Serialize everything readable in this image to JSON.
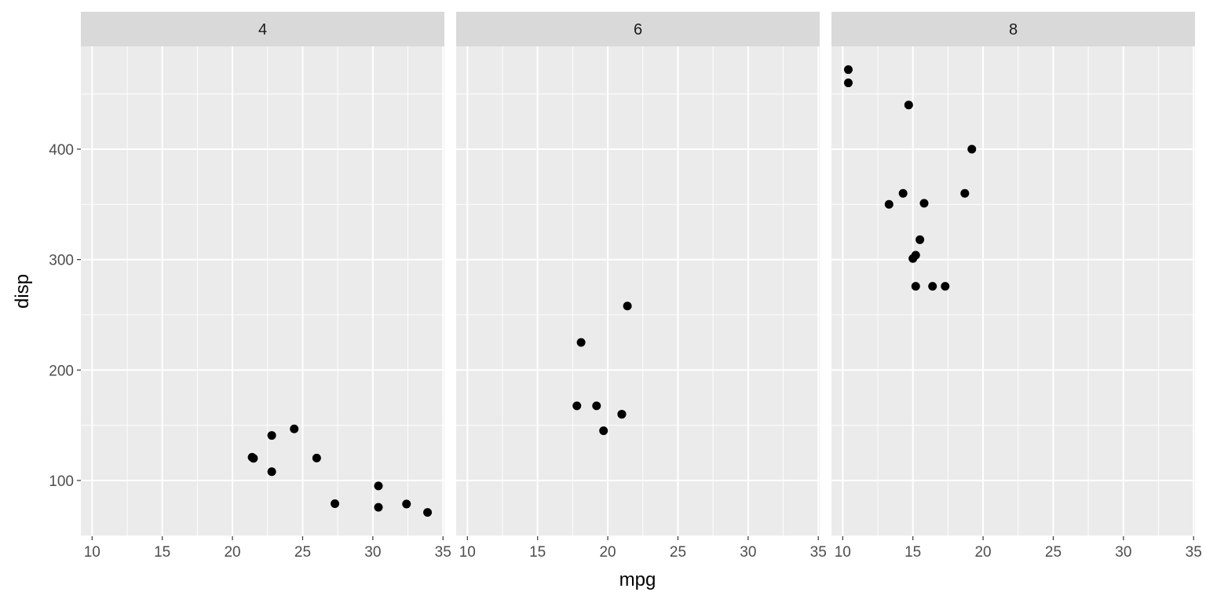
{
  "chart_data": {
    "type": "scatter",
    "xlabel": "mpg",
    "ylabel": "disp",
    "xlim": [
      9.2,
      35.1
    ],
    "ylim": [
      49.5,
      493.1
    ],
    "x_ticks": [
      10,
      15,
      20,
      25,
      30,
      35
    ],
    "y_ticks": [
      100,
      200,
      300,
      400
    ],
    "grid": true,
    "facets": [
      {
        "label": "4",
        "points": [
          {
            "x": 22.8,
            "y": 108
          },
          {
            "x": 24.4,
            "y": 146.7
          },
          {
            "x": 22.8,
            "y": 140.8
          },
          {
            "x": 32.4,
            "y": 78.7
          },
          {
            "x": 30.4,
            "y": 75.7
          },
          {
            "x": 33.9,
            "y": 71.1
          },
          {
            "x": 21.5,
            "y": 120.1
          },
          {
            "x": 27.3,
            "y": 79
          },
          {
            "x": 26.0,
            "y": 120.3
          },
          {
            "x": 30.4,
            "y": 95.1
          },
          {
            "x": 21.4,
            "y": 121
          }
        ]
      },
      {
        "label": "6",
        "points": [
          {
            "x": 21.0,
            "y": 160
          },
          {
            "x": 21.0,
            "y": 160
          },
          {
            "x": 21.4,
            "y": 258
          },
          {
            "x": 18.1,
            "y": 225
          },
          {
            "x": 19.2,
            "y": 167.6
          },
          {
            "x": 17.8,
            "y": 167.6
          },
          {
            "x": 19.7,
            "y": 145
          }
        ]
      },
      {
        "label": "8",
        "points": [
          {
            "x": 18.7,
            "y": 360
          },
          {
            "x": 14.3,
            "y": 360
          },
          {
            "x": 16.4,
            "y": 275.8
          },
          {
            "x": 17.3,
            "y": 275.8
          },
          {
            "x": 15.2,
            "y": 275.8
          },
          {
            "x": 10.4,
            "y": 472
          },
          {
            "x": 10.4,
            "y": 460
          },
          {
            "x": 14.7,
            "y": 440
          },
          {
            "x": 15.5,
            "y": 318
          },
          {
            "x": 15.2,
            "y": 304
          },
          {
            "x": 13.3,
            "y": 350
          },
          {
            "x": 19.2,
            "y": 400
          },
          {
            "x": 15.8,
            "y": 351
          },
          {
            "x": 15.0,
            "y": 301
          }
        ]
      }
    ]
  }
}
